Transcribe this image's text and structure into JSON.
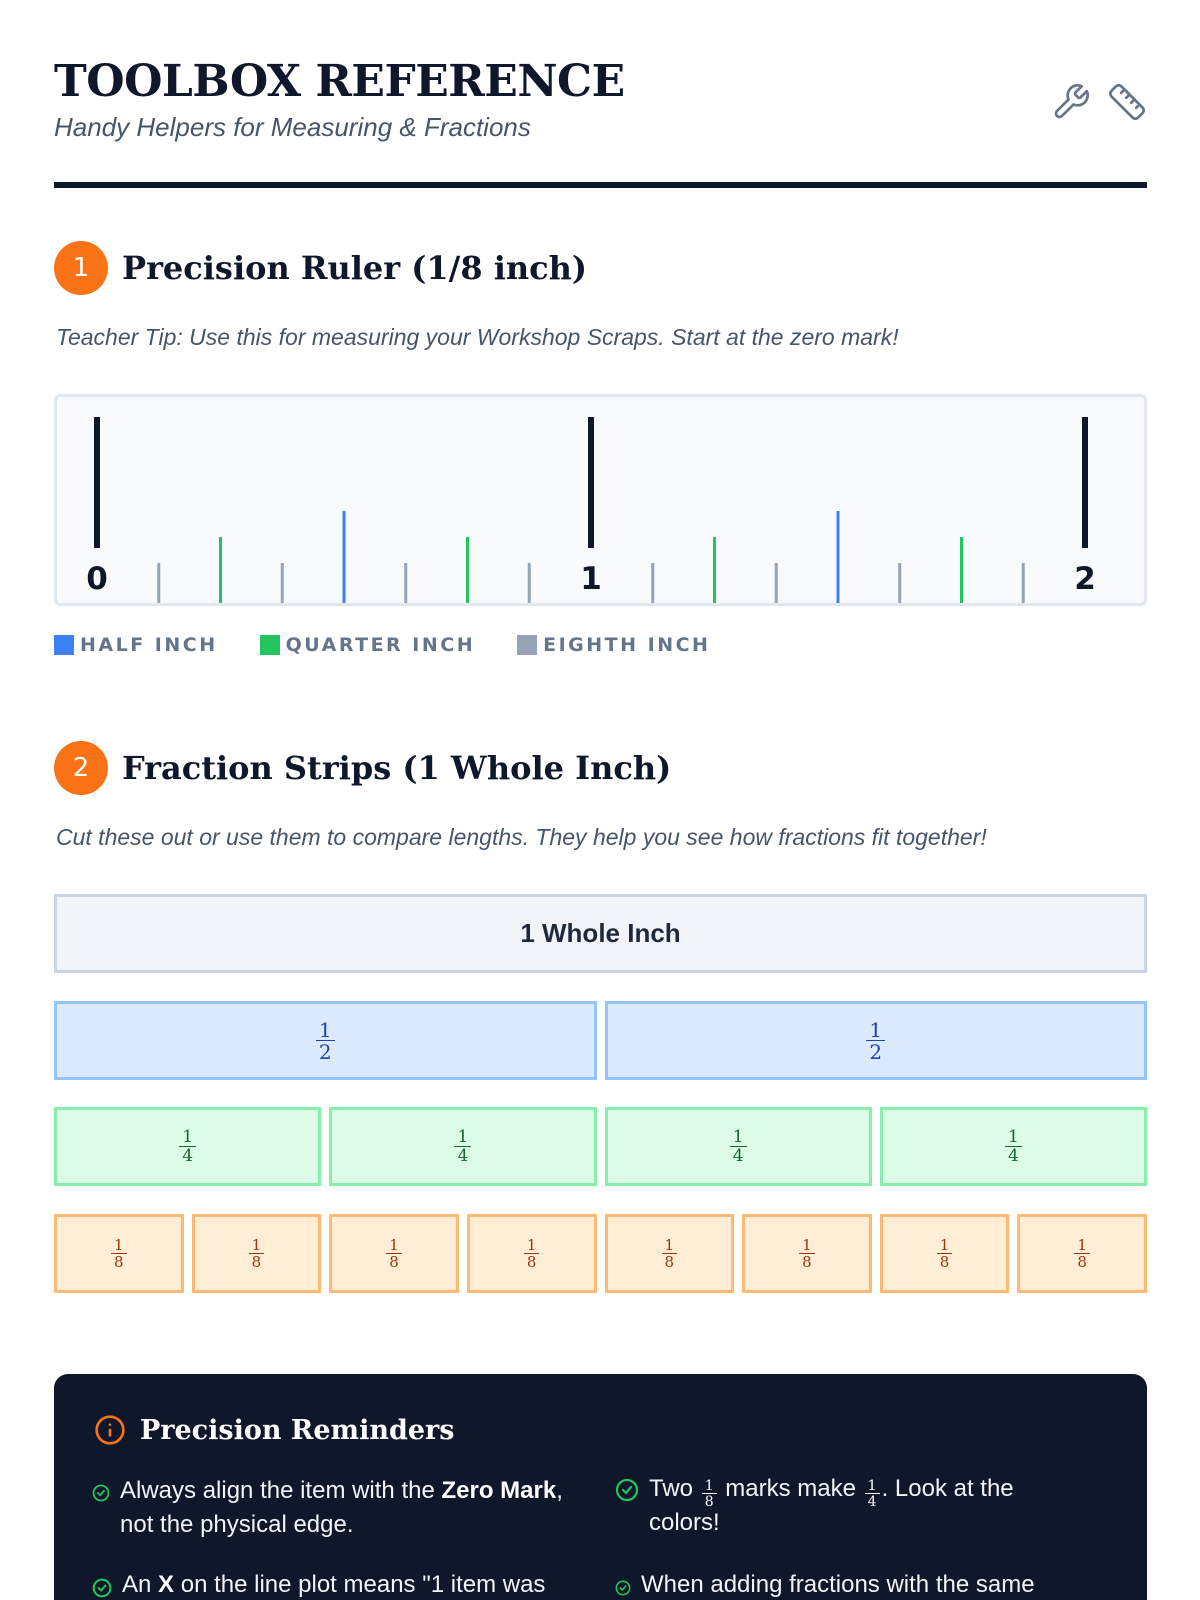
{
  "header": {
    "title": "TOOLBOX REFERENCE",
    "subtitle": "Handy Helpers for Measuring & Fractions",
    "icons": [
      "wrench-icon",
      "ruler-icon"
    ]
  },
  "ruler_section": {
    "number": "1",
    "title": "Precision Ruler (1/8 inch)",
    "tip": "Teacher Tip: Use this for measuring your Workshop Scraps. Start at the zero mark!",
    "labels": [
      "0",
      "1",
      "2"
    ],
    "legend": [
      {
        "label": "HALF INCH",
        "color": "#3b82f6"
      },
      {
        "label": "QUARTER INCH",
        "color": "#22c55e"
      },
      {
        "label": "EIGHTH INCH",
        "color": "#94a3b8"
      }
    ]
  },
  "strips_section": {
    "number": "2",
    "title": "Fraction Strips (1 Whole Inch)",
    "tip": "Cut these out or use them to compare lengths. They help you see how fractions fit together!",
    "whole_label": "1 Whole Inch",
    "half": {
      "n": "1",
      "d": "2"
    },
    "quarter": {
      "n": "1",
      "d": "4"
    },
    "eighth": {
      "n": "1",
      "d": "8"
    }
  },
  "reminders": {
    "title": "Precision Reminders",
    "item1_pre": "Always align the item with the ",
    "item1_bold": "Zero Mark",
    "item1_post": ",",
    "item1_line2": "not the physical edge.",
    "item2_pre": "Two",
    "item2_mid": "marks make",
    "item2_post": ". Look at the",
    "item2_line2": "colors!",
    "item3_pre": "An ",
    "item3_bold": "X",
    "item3_post": " on the line plot means \"1 item was",
    "item4": "When adding fractions with the same"
  },
  "colors": {
    "accent": "#f97316",
    "dark": "#0f172a",
    "half": "#3b82f6",
    "quarter": "#22c55e",
    "eighth": "#94a3b8"
  }
}
